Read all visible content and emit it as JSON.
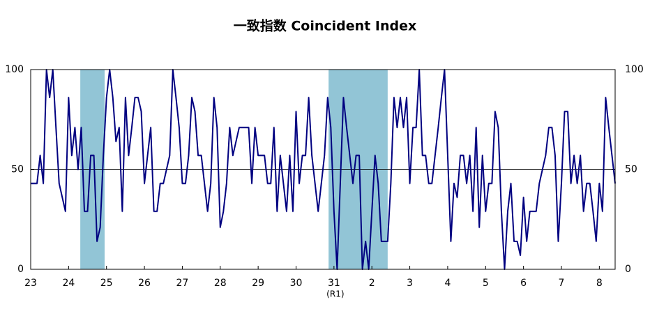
{
  "chart_data": {
    "type": "line",
    "title": "一致指数 Coincident Index",
    "annotation": "(R1)",
    "categories": [
      "23",
      null,
      null,
      null,
      null,
      null,
      null,
      null,
      null,
      null,
      null,
      null,
      "24",
      null,
      null,
      null,
      null,
      null,
      null,
      null,
      null,
      null,
      null,
      null,
      "25",
      null,
      null,
      null,
      null,
      null,
      null,
      null,
      null,
      null,
      null,
      null,
      "26",
      null,
      null,
      null,
      null,
      null,
      null,
      null,
      null,
      null,
      null,
      null,
      "27",
      null,
      null,
      null,
      null,
      null,
      null,
      null,
      null,
      null,
      null,
      null,
      "28",
      null,
      null,
      null,
      null,
      null,
      null,
      null,
      null,
      null,
      null,
      null,
      "29",
      null,
      null,
      null,
      null,
      null,
      null,
      null,
      null,
      null,
      null,
      null,
      "30",
      null,
      null,
      null,
      null,
      null,
      null,
      null,
      null,
      null,
      null,
      null,
      "31",
      null,
      null,
      null,
      null,
      null,
      null,
      null,
      null,
      null,
      null,
      null,
      "2",
      null,
      null,
      null,
      null,
      null,
      null,
      null,
      null,
      null,
      null,
      null,
      "3",
      null,
      null,
      null,
      null,
      null,
      null,
      null,
      null,
      null,
      null,
      null,
      "4",
      null,
      null,
      null,
      null,
      null,
      null,
      null,
      null,
      null,
      null,
      null,
      "5",
      null,
      null,
      null,
      null,
      null,
      null,
      null,
      null,
      null,
      null,
      null,
      "6",
      null,
      null,
      null,
      null,
      null,
      null,
      null,
      null,
      null,
      null,
      null,
      "7",
      null,
      null,
      null,
      null,
      null,
      null,
      null,
      null,
      null,
      null,
      null,
      "8",
      null,
      null,
      null,
      null,
      null
    ],
    "values": [
      43,
      43,
      43,
      57,
      43,
      100,
      86,
      100,
      71,
      43,
      36,
      29,
      86,
      57,
      71,
      50,
      71,
      29,
      29,
      57,
      57,
      14,
      21,
      57,
      86,
      100,
      86,
      64,
      71,
      29,
      86,
      57,
      71,
      86,
      86,
      79,
      43,
      57,
      71,
      29,
      29,
      43,
      43,
      50,
      57,
      100,
      86,
      71,
      43,
      43,
      57,
      86,
      79,
      57,
      57,
      43,
      29,
      43,
      86,
      71,
      21,
      29,
      43,
      71,
      57,
      64,
      71,
      71,
      71,
      71,
      43,
      71,
      57,
      57,
      57,
      43,
      43,
      71,
      29,
      57,
      43,
      29,
      57,
      29,
      79,
      43,
      57,
      57,
      86,
      57,
      43,
      29,
      43,
      57,
      86,
      71,
      29,
      0,
      43,
      86,
      71,
      57,
      43,
      57,
      57,
      0,
      14,
      0,
      29,
      57,
      43,
      14,
      14,
      14,
      43,
      86,
      71,
      86,
      71,
      86,
      43,
      71,
      71,
      100,
      57,
      57,
      43,
      43,
      57,
      71,
      86,
      100,
      57,
      14,
      43,
      36,
      57,
      57,
      43,
      57,
      29,
      71,
      21,
      57,
      29,
      43,
      43,
      79,
      71,
      29,
      0,
      29,
      43,
      14,
      14,
      7,
      36,
      14,
      29,
      29,
      29,
      43,
      50,
      57,
      71,
      71,
      57,
      14,
      43,
      79,
      79,
      43,
      57,
      43,
      57,
      29,
      43,
      43,
      29,
      14,
      43,
      29,
      86,
      71,
      57,
      43
    ],
    "color": "#000080",
    "shaded_ranges": [
      [
        15.7,
        23.4
      ],
      [
        94.3,
        113
      ]
    ],
    "shade_color": "#92c5d6",
    "ylim": [
      0,
      100
    ],
    "yticks": [
      0,
      50,
      100
    ],
    "y2lim": [
      0,
      100
    ],
    "y2ticks": [
      0,
      50,
      100
    ],
    "reference_line": 50
  }
}
